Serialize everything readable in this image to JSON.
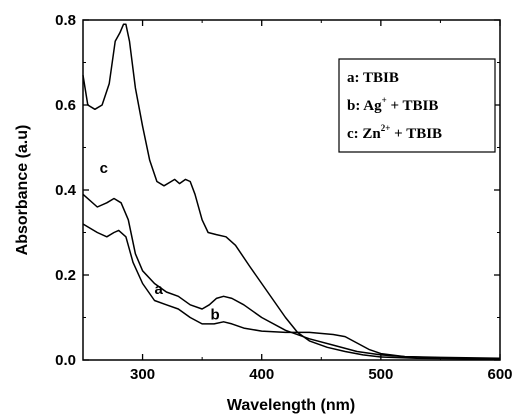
{
  "chart_data": {
    "type": "line",
    "xlabel": "Wavelength (nm)",
    "ylabel": "Absorbance (a.u)",
    "xlim": [
      250,
      600
    ],
    "ylim": [
      0,
      0.8
    ],
    "xticks": [
      "300",
      "400",
      "500",
      "600"
    ],
    "yticks": [
      "0.0",
      "0.2",
      "0.4",
      "0.6",
      "0.8"
    ],
    "legend": {
      "placement": "top-right",
      "entries": [
        {
          "key": "a",
          "base": "TBIB",
          "sup": "",
          "rest": ""
        },
        {
          "key": "b",
          "base": "Ag",
          "sup": "+",
          "rest": " + TBIB"
        },
        {
          "key": "c",
          "base": "Zn",
          "sup": "2+",
          "rest": " + TBIB"
        }
      ]
    },
    "series": [
      {
        "name": "a",
        "label_at": [
          310,
          0.155
        ],
        "points": [
          [
            250,
            0.39
          ],
          [
            262,
            0.36
          ],
          [
            270,
            0.37
          ],
          [
            276,
            0.38
          ],
          [
            282,
            0.37
          ],
          [
            288,
            0.33
          ],
          [
            294,
            0.25
          ],
          [
            300,
            0.21
          ],
          [
            310,
            0.18
          ],
          [
            320,
            0.16
          ],
          [
            330,
            0.15
          ],
          [
            340,
            0.13
          ],
          [
            350,
            0.12
          ],
          [
            356,
            0.13
          ],
          [
            362,
            0.145
          ],
          [
            368,
            0.15
          ],
          [
            375,
            0.145
          ],
          [
            385,
            0.13
          ],
          [
            400,
            0.1
          ],
          [
            420,
            0.07
          ],
          [
            440,
            0.05
          ],
          [
            460,
            0.035
          ],
          [
            480,
            0.02
          ],
          [
            500,
            0.012
          ],
          [
            520,
            0.008
          ],
          [
            550,
            0.006
          ],
          [
            600,
            0.004
          ]
        ]
      },
      {
        "name": "b",
        "label_at": [
          357,
          0.095
        ],
        "points": [
          [
            250,
            0.32
          ],
          [
            262,
            0.3
          ],
          [
            270,
            0.29
          ],
          [
            276,
            0.3
          ],
          [
            280,
            0.305
          ],
          [
            286,
            0.29
          ],
          [
            292,
            0.23
          ],
          [
            300,
            0.18
          ],
          [
            310,
            0.14
          ],
          [
            320,
            0.13
          ],
          [
            330,
            0.12
          ],
          [
            340,
            0.1
          ],
          [
            350,
            0.085
          ],
          [
            360,
            0.085
          ],
          [
            368,
            0.09
          ],
          [
            375,
            0.085
          ],
          [
            385,
            0.075
          ],
          [
            400,
            0.068
          ],
          [
            420,
            0.065
          ],
          [
            440,
            0.065
          ],
          [
            460,
            0.06
          ],
          [
            470,
            0.055
          ],
          [
            480,
            0.04
          ],
          [
            490,
            0.025
          ],
          [
            500,
            0.015
          ],
          [
            520,
            0.008
          ],
          [
            550,
            0.005
          ],
          [
            600,
            0.003
          ]
        ]
      },
      {
        "name": "c",
        "label_at": [
          264,
          0.44
        ],
        "points": [
          [
            250,
            0.67
          ],
          [
            254,
            0.6
          ],
          [
            260,
            0.59
          ],
          [
            266,
            0.6
          ],
          [
            272,
            0.65
          ],
          [
            277,
            0.75
          ],
          [
            281,
            0.77
          ],
          [
            284,
            0.79
          ],
          [
            286,
            0.79
          ],
          [
            289,
            0.75
          ],
          [
            294,
            0.64
          ],
          [
            300,
            0.55
          ],
          [
            306,
            0.47
          ],
          [
            312,
            0.42
          ],
          [
            318,
            0.41
          ],
          [
            324,
            0.42
          ],
          [
            327,
            0.425
          ],
          [
            331,
            0.415
          ],
          [
            336,
            0.425
          ],
          [
            340,
            0.42
          ],
          [
            344,
            0.39
          ],
          [
            350,
            0.33
          ],
          [
            355,
            0.3
          ],
          [
            362,
            0.295
          ],
          [
            370,
            0.29
          ],
          [
            378,
            0.27
          ],
          [
            390,
            0.22
          ],
          [
            400,
            0.18
          ],
          [
            410,
            0.14
          ],
          [
            420,
            0.1
          ],
          [
            430,
            0.065
          ],
          [
            440,
            0.045
          ],
          [
            455,
            0.03
          ],
          [
            470,
            0.02
          ],
          [
            485,
            0.012
          ],
          [
            500,
            0.007
          ],
          [
            530,
            0.004
          ],
          [
            600,
            0.002
          ]
        ]
      }
    ]
  }
}
